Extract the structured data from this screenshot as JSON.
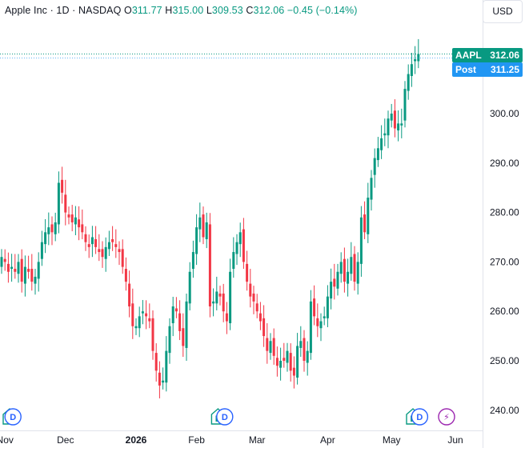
{
  "header": {
    "symbol_info": "Apple Inc · 1D · NASDAQ",
    "o_label": "O",
    "o_value": "311.77",
    "h_label": "H",
    "h_value": "315.00",
    "l_label": "L",
    "l_value": "309.53",
    "c_label": "C",
    "c_value": "312.06",
    "change": "−0.45 (−0.14%)"
  },
  "currency_button": "USD",
  "price_tags": {
    "last": {
      "name": "AAPL",
      "value": "312.06"
    },
    "post": {
      "name": "Post",
      "value": "311.25"
    }
  },
  "colors": {
    "up": "#089981",
    "down": "#f23645",
    "post": "#2196f3",
    "event_blue": "#2962ff",
    "event_purple": "#9c27b0"
  },
  "events": [
    {
      "label": "E",
      "kind": "earnings",
      "x_index": 0
    },
    {
      "label": "D",
      "kind": "dividend",
      "x_index": 1
    },
    {
      "label": "E",
      "kind": "earnings",
      "x_index": 62
    },
    {
      "label": "D",
      "kind": "dividend",
      "x_index": 64
    },
    {
      "label": "E",
      "kind": "earnings",
      "x_index": 120
    },
    {
      "label": "D",
      "kind": "dividend",
      "x_index": 122
    },
    {
      "label": "⚡",
      "kind": "split/news",
      "x_index": 130
    }
  ],
  "chart_data": {
    "type": "candlestick",
    "ylim": [
      237,
      317
    ],
    "y_ticks": [
      240,
      250,
      260,
      270,
      280,
      290,
      300
    ],
    "x_tick_labels": [
      {
        "label": "Nov",
        "index": 1
      },
      {
        "label": "Dec",
        "index": 19
      },
      {
        "label": "2026",
        "index": 40
      },
      {
        "label": "Feb",
        "index": 58
      },
      {
        "label": "Mar",
        "index": 76
      },
      {
        "label": "Apr",
        "index": 97
      },
      {
        "label": "May",
        "index": 116
      },
      {
        "label": "Jun",
        "index": 135
      }
    ],
    "last_price": 312.06,
    "post_price": 311.25,
    "close": [
      271,
      270,
      268,
      269,
      268,
      270,
      266,
      269,
      268,
      266,
      267,
      270,
      274,
      276,
      277,
      276,
      278,
      286,
      284,
      280,
      279,
      278,
      279,
      277,
      276,
      274,
      273,
      275,
      273,
      272,
      271,
      273,
      274,
      274,
      273,
      272,
      269,
      266,
      261,
      257,
      257,
      259,
      260,
      259,
      258,
      252,
      248,
      245,
      246,
      252,
      257,
      261,
      260,
      256,
      253,
      262,
      268,
      272,
      277,
      279,
      275,
      278,
      261,
      262,
      264,
      263,
      260,
      258,
      268,
      272,
      274,
      276,
      270,
      266,
      263,
      262,
      260,
      258,
      255,
      252,
      254,
      251,
      249,
      250,
      250,
      252,
      248,
      247,
      253,
      254,
      250,
      252,
      262,
      259,
      257,
      258,
      259,
      263,
      266,
      265,
      268,
      270,
      266,
      268,
      271,
      266,
      270,
      279,
      276,
      283,
      287,
      291,
      293,
      295,
      296,
      299,
      300,
      297,
      298,
      298,
      305,
      308,
      310,
      311,
      312.06
    ],
    "candle_colors": "derived from open/close"
  }
}
